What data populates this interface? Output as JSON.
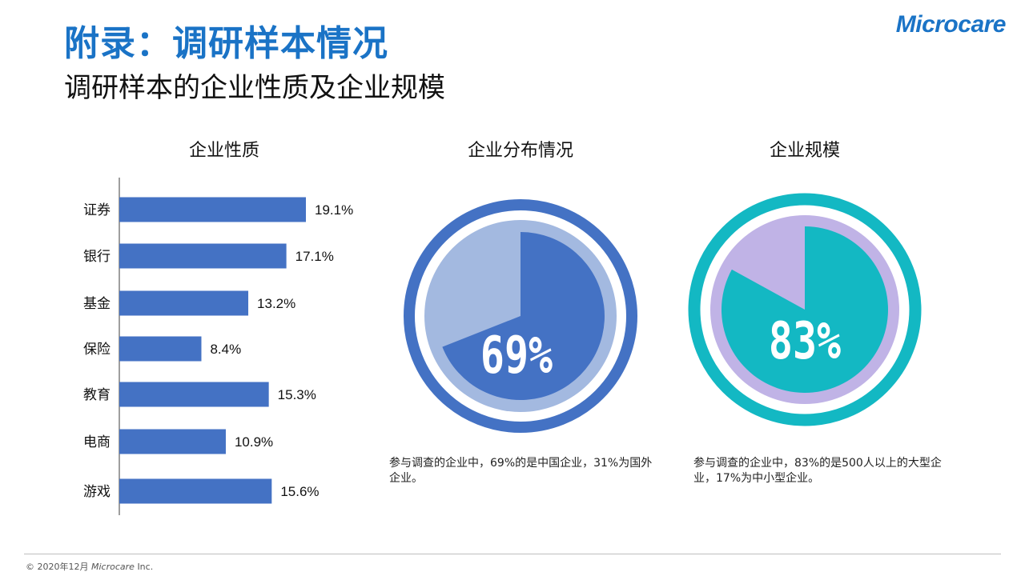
{
  "header": {
    "title": "附录：调研样本情况",
    "subtitle": "调研样本的企业性质及企业规模",
    "logo": "Microcare"
  },
  "footer": {
    "prefix": "© 2020年12月",
    "brand": "Microcare",
    "suffix": "Inc."
  },
  "colors": {
    "title_blue": "#1a73c6",
    "bar_blue": "#4472c4",
    "pie1_dark": "#4472c4",
    "pie1_light": "#a3b9e0",
    "pie2_dark": "#13b8c3",
    "pie2_light": "#c0b3e6"
  },
  "chart_data": [
    {
      "type": "bar",
      "orientation": "horizontal",
      "title": "企业性质",
      "categories": [
        "证券",
        "银行",
        "基金",
        "保险",
        "教育",
        "电商",
        "游戏"
      ],
      "values": [
        19.1,
        17.1,
        13.2,
        8.4,
        15.3,
        10.9,
        15.6
      ],
      "value_labels": [
        "19.1%",
        "17.1%",
        "13.2%",
        "8.4%",
        "15.3%",
        "10.9%",
        "15.6%"
      ],
      "xlim": [
        0,
        25
      ],
      "grid": false
    },
    {
      "type": "pie",
      "title": "企业分布情况",
      "values": [
        69,
        31
      ],
      "center_label": "69%",
      "caption": "参与调查的企业中，69%的是中国企业，31%为国外企业。"
    },
    {
      "type": "pie",
      "title": "企业规模",
      "values": [
        83,
        17
      ],
      "center_label": "83%",
      "caption": "参与调查的企业中，83%的是500人以上的大型企业，17%为中小型企业。"
    }
  ]
}
